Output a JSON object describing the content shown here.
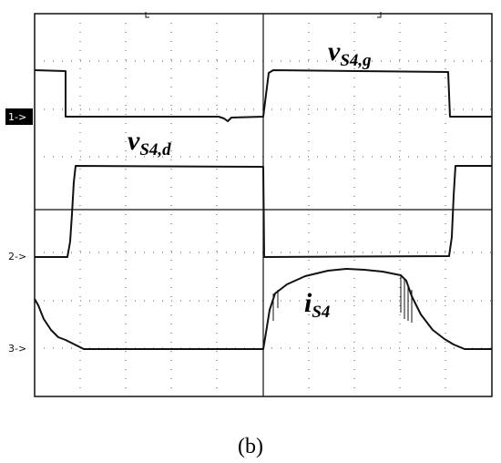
{
  "channel_markers": [
    "1->",
    "2->",
    "3->"
  ],
  "labels": {
    "gate_voltage": {
      "main": "v",
      "sub": "S4,g"
    },
    "drain_voltage": {
      "main": "v",
      "sub": "S4,d"
    },
    "current": {
      "main": "i",
      "sub": "S4"
    }
  },
  "caption": "(b)"
}
